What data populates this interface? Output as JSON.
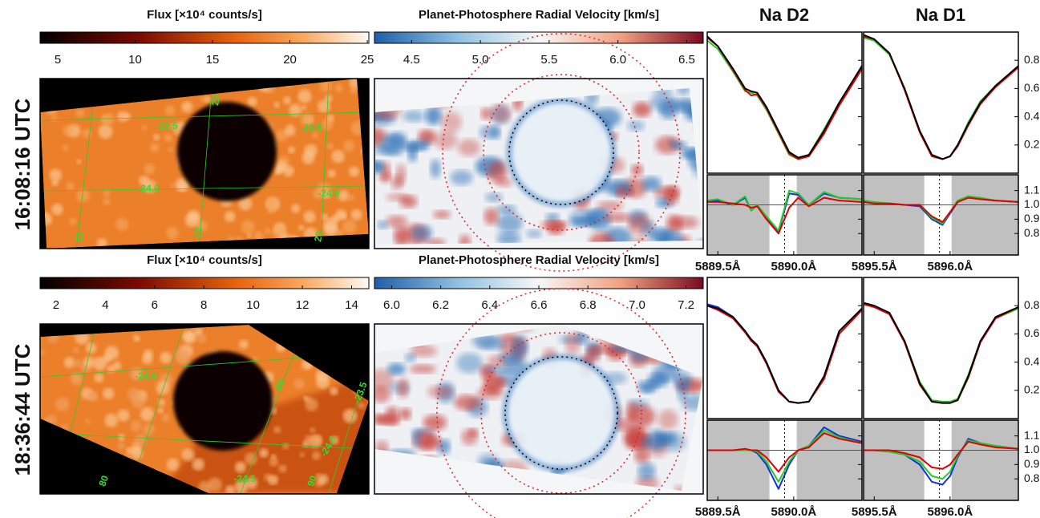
{
  "columns": [
    {
      "title": "Na D2"
    },
    {
      "title": "Na D1"
    }
  ],
  "rows": [
    {
      "time": "16:08:16 UTC",
      "flux_colorbar": {
        "label": "Flux [×10⁴ counts/s]",
        "lim": [
          3.86,
          25.1
        ],
        "ticks": [
          5,
          10,
          15,
          20,
          25
        ]
      },
      "velocity_colorbar": {
        "label": "Planet-Photosphere Radial Velocity [km/s]",
        "lim": [
          4.23,
          6.62
        ],
        "ticks": [
          4.5,
          {
            "value": 5,
            "label": "5.0"
          },
          5.5,
          {
            "value": 6,
            "label": "6.0"
          },
          6.5
        ]
      },
      "grid_labels": [
        "-23.5",
        "-23.5",
        "-24.0",
        "-24.0",
        "22",
        "22",
        "21",
        "23"
      ],
      "ylim": [
        0,
        1.0
      ],
      "yticks": [
        0.2,
        0.4,
        0.6,
        0.8
      ],
      "ratio_ylim": [
        0.65,
        1.21
      ],
      "ratio_yticks": [
        1.1,
        {
          "value": 1,
          "label": "1.0"
        },
        0.9,
        0.8
      ],
      "spectra": [
        {
          "xlim": [
            5889.43,
            5890.45
          ],
          "xticks": [
            {
              "value": 5889.5,
              "label": "5889.5Å"
            },
            {
              "value": 5890.0,
              "label": "5890.0Å"
            }
          ],
          "unshaded": [
            5889.84,
            5890.02
          ],
          "center": 5889.94,
          "x": [
            5889.43,
            5889.5,
            5889.6,
            5889.68,
            5889.72,
            5889.76,
            5889.82,
            5889.9,
            5889.97,
            5890.03,
            5890.1,
            5890.2,
            5890.3,
            5890.45
          ],
          "series": [
            {
              "color": "#22cc22",
              "values": [
                0.94,
                0.88,
                0.72,
                0.58,
                0.57,
                0.55,
                0.45,
                0.28,
                0.13,
                0.1,
                0.13,
                0.31,
                0.5,
                0.75
              ]
            },
            {
              "color": "#e00000",
              "values": [
                0.96,
                0.9,
                0.73,
                0.59,
                0.55,
                0.56,
                0.46,
                0.29,
                0.14,
                0.1,
                0.12,
                0.28,
                0.48,
                0.74
              ]
            },
            {
              "color": "#000000",
              "values": [
                0.97,
                0.9,
                0.74,
                0.6,
                0.58,
                0.57,
                0.47,
                0.3,
                0.15,
                0.11,
                0.13,
                0.3,
                0.5,
                0.76
              ]
            }
          ],
          "ratio_series": [
            {
              "color": "#1030e0",
              "values": [
                1.03,
                1.03,
                1.0,
                1.05,
                0.96,
                1.0,
                0.91,
                0.81,
                1.08,
                1.07,
                1.0,
                1.08,
                1.05,
                1.04
              ]
            },
            {
              "color": "#22cc22",
              "values": [
                1.03,
                1.04,
                1.0,
                1.06,
                0.96,
                1.0,
                0.92,
                0.82,
                1.1,
                1.08,
                1.0,
                1.09,
                1.05,
                1.04
              ]
            },
            {
              "color": "#e00000",
              "values": [
                1.02,
                1.02,
                1.01,
                1.0,
                0.98,
                0.99,
                0.9,
                0.8,
                0.98,
                1.05,
                0.99,
                1.05,
                1.03,
                1.02
              ]
            }
          ]
        },
        {
          "xlim": [
            5895.43,
            5896.45
          ],
          "xticks": [
            {
              "value": 5895.5,
              "label": "5895.5Å"
            },
            {
              "value": 5896.0,
              "label": "5896.0Å"
            }
          ],
          "unshaded": [
            5895.83,
            5896.01
          ],
          "center": 5895.93,
          "x": [
            5895.43,
            5895.5,
            5895.6,
            5895.7,
            5895.8,
            5895.88,
            5895.95,
            5896.0,
            5896.05,
            5896.12,
            5896.2,
            5896.3,
            5896.45
          ],
          "series": [
            {
              "color": "#22cc22",
              "values": [
                0.96,
                0.94,
                0.84,
                0.6,
                0.3,
                0.13,
                0.1,
                0.12,
                0.2,
                0.36,
                0.51,
                0.62,
                0.75
              ]
            },
            {
              "color": "#e00000",
              "values": [
                0.97,
                0.95,
                0.85,
                0.59,
                0.29,
                0.12,
                0.1,
                0.12,
                0.19,
                0.34,
                0.49,
                0.61,
                0.75
              ]
            },
            {
              "color": "#000000",
              "values": [
                0.98,
                0.95,
                0.85,
                0.6,
                0.3,
                0.13,
                0.1,
                0.12,
                0.2,
                0.35,
                0.5,
                0.62,
                0.76
              ]
            }
          ],
          "ratio_series": [
            {
              "color": "#1030e0",
              "values": [
                1.02,
                1.01,
                1.01,
                1.0,
                0.99,
                0.9,
                0.86,
                0.94,
                1.02,
                1.06,
                1.04,
                1.03,
                1.02
              ]
            },
            {
              "color": "#22cc22",
              "values": [
                1.03,
                1.02,
                1.01,
                1.0,
                1.0,
                0.91,
                0.87,
                0.95,
                1.03,
                1.06,
                1.05,
                1.03,
                1.02
              ]
            },
            {
              "color": "#e00000",
              "values": [
                1.02,
                1.01,
                1.01,
                1.0,
                1.0,
                0.92,
                0.88,
                0.95,
                1.02,
                1.05,
                1.04,
                1.03,
                1.02
              ]
            }
          ]
        }
      ]
    },
    {
      "time": "18:36:44 UTC",
      "flux_colorbar": {
        "label": "Flux [×10⁴ counts/s]",
        "lim": [
          1.35,
          14.7
        ],
        "ticks": [
          2,
          4,
          6,
          8,
          10,
          12,
          14
        ]
      },
      "velocity_colorbar": {
        "label": "Planet-Photosphere Radial Velocity [km/s]",
        "lim": [
          5.93,
          7.27
        ],
        "ticks": [
          {
            "value": 6,
            "label": "6.0"
          },
          6.2,
          6.4,
          6.6,
          6.8,
          {
            "value": 7,
            "label": "7.0"
          },
          7.2
        ]
      },
      "grid_labels": [
        "-24.0",
        "-23.5",
        "-24.0",
        "-24.5",
        "80",
        "90",
        "80"
      ],
      "ylim": [
        0,
        1.0
      ],
      "yticks": [
        0.2,
        0.4,
        0.6,
        0.8
      ],
      "ratio_ylim": [
        0.65,
        1.21
      ],
      "ratio_yticks": [
        1.1,
        {
          "value": 1,
          "label": "1.0"
        },
        0.9,
        0.8
      ],
      "spectra": [
        {
          "xlim": [
            5889.43,
            5890.45
          ],
          "xticks": [
            {
              "value": 5889.5,
              "label": "5889.5Å"
            },
            {
              "value": 5890.0,
              "label": "5890.0Å"
            }
          ],
          "unshaded": [
            5889.84,
            5890.02
          ],
          "center": 5889.94,
          "x": [
            5889.43,
            5889.5,
            5889.6,
            5889.68,
            5889.72,
            5889.76,
            5889.82,
            5889.9,
            5889.97,
            5890.03,
            5890.1,
            5890.2,
            5890.3,
            5890.45
          ],
          "series": [
            {
              "color": "#1030e0",
              "values": [
                0.81,
                0.79,
                0.72,
                0.62,
                0.56,
                0.52,
                0.4,
                0.2,
                0.12,
                0.11,
                0.12,
                0.3,
                0.62,
                0.78
              ]
            },
            {
              "color": "#e00000",
              "values": [
                0.8,
                0.77,
                0.71,
                0.61,
                0.55,
                0.51,
                0.39,
                0.19,
                0.12,
                0.11,
                0.12,
                0.28,
                0.6,
                0.77
              ]
            },
            {
              "color": "#000000",
              "values": [
                0.8,
                0.78,
                0.72,
                0.62,
                0.56,
                0.52,
                0.4,
                0.2,
                0.12,
                0.11,
                0.12,
                0.3,
                0.62,
                0.78
              ]
            }
          ],
          "ratio_series": [
            {
              "color": "#1030e0",
              "values": [
                1.0,
                1.0,
                1.0,
                1.0,
                1.0,
                0.98,
                0.9,
                0.73,
                0.9,
                1.0,
                1.03,
                1.16,
                1.1,
                1.06
              ]
            },
            {
              "color": "#22cc22",
              "values": [
                1.0,
                1.0,
                1.0,
                1.0,
                1.0,
                0.99,
                0.92,
                0.78,
                0.92,
                1.0,
                1.03,
                1.14,
                1.09,
                1.05
              ]
            },
            {
              "color": "#e00000",
              "values": [
                1.0,
                1.0,
                1.0,
                1.01,
                1.0,
                1.0,
                0.95,
                0.85,
                0.95,
                1.0,
                1.02,
                1.12,
                1.08,
                1.05
              ]
            }
          ]
        },
        {
          "xlim": [
            5895.43,
            5896.45
          ],
          "xticks": [
            {
              "value": 5895.5,
              "label": "5895.5Å"
            },
            {
              "value": 5896.0,
              "label": "5896.0Å"
            }
          ],
          "unshaded": [
            5895.83,
            5896.01
          ],
          "center": 5895.93,
          "x": [
            5895.43,
            5895.5,
            5895.6,
            5895.7,
            5895.8,
            5895.88,
            5895.95,
            5896.0,
            5896.05,
            5896.12,
            5896.2,
            5896.3,
            5896.45
          ],
          "series": [
            {
              "color": "#22cc22",
              "values": [
                0.82,
                0.8,
                0.74,
                0.55,
                0.26,
                0.13,
                0.12,
                0.12,
                0.14,
                0.31,
                0.55,
                0.71,
                0.78
              ]
            },
            {
              "color": "#e00000",
              "values": [
                0.81,
                0.79,
                0.74,
                0.54,
                0.24,
                0.12,
                0.11,
                0.11,
                0.13,
                0.29,
                0.54,
                0.71,
                0.79
              ]
            },
            {
              "color": "#000000",
              "values": [
                0.82,
                0.8,
                0.75,
                0.55,
                0.25,
                0.12,
                0.11,
                0.11,
                0.13,
                0.3,
                0.55,
                0.72,
                0.79
              ]
            }
          ],
          "ratio_series": [
            {
              "color": "#1030e0",
              "values": [
                1.0,
                1.0,
                0.99,
                0.97,
                0.9,
                0.78,
                0.76,
                0.82,
                0.95,
                1.08,
                1.05,
                1.03,
                1.01
              ]
            },
            {
              "color": "#22cc22",
              "values": [
                1.0,
                1.0,
                0.99,
                0.97,
                0.92,
                0.82,
                0.8,
                0.85,
                0.96,
                1.07,
                1.05,
                1.03,
                1.01
              ]
            },
            {
              "color": "#e00000",
              "values": [
                1.0,
                1.0,
                1.0,
                0.98,
                0.95,
                0.88,
                0.87,
                0.9,
                0.97,
                1.06,
                1.04,
                1.02,
                1.01
              ]
            }
          ]
        }
      ]
    }
  ]
}
